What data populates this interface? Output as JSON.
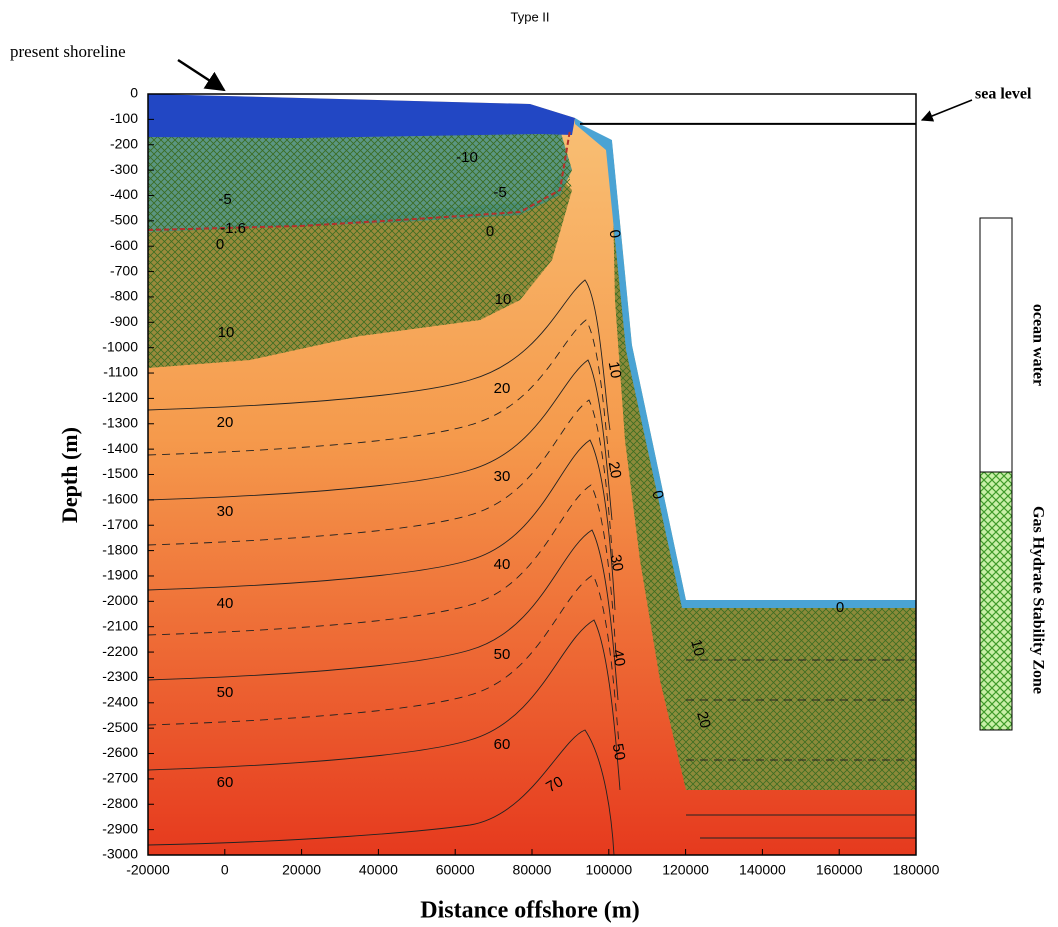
{
  "chart_data": {
    "type": "contour",
    "title": "Type II",
    "xlabel": "Distance offshore (m)",
    "ylabel": "Depth (m)",
    "xlim": [
      -20000,
      180000
    ],
    "xticks": [
      -20000,
      0,
      20000,
      40000,
      60000,
      80000,
      100000,
      120000,
      140000,
      160000,
      180000
    ],
    "ylim": [
      -3000,
      0
    ],
    "yticks": [
      0,
      -100,
      -200,
      -300,
      -400,
      -500,
      -600,
      -700,
      -800,
      -900,
      -1000,
      -1100,
      -1200,
      -1300,
      -1400,
      -1500,
      -1600,
      -1700,
      -1800,
      -1900,
      -2000,
      -2100,
      -2200,
      -2300,
      -2400,
      -2500,
      -2600,
      -2700,
      -2800,
      -2900,
      -3000
    ],
    "sea_level": -118,
    "annotations": [
      "present shoreline",
      "sea level"
    ],
    "legend": [
      {
        "name": "ocean water",
        "color": "#ffffff"
      },
      {
        "name": "Gas Hydrate Stability Zone",
        "color": "#8ad45a"
      }
    ],
    "contour_labels": [
      -10,
      -5,
      -5,
      -1.6,
      0,
      0,
      10,
      10,
      20,
      20,
      30,
      30,
      40,
      40,
      50,
      50,
      60,
      60,
      70,
      0,
      10,
      20,
      30,
      40,
      50,
      0,
      10,
      20,
      0
    ]
  }
}
